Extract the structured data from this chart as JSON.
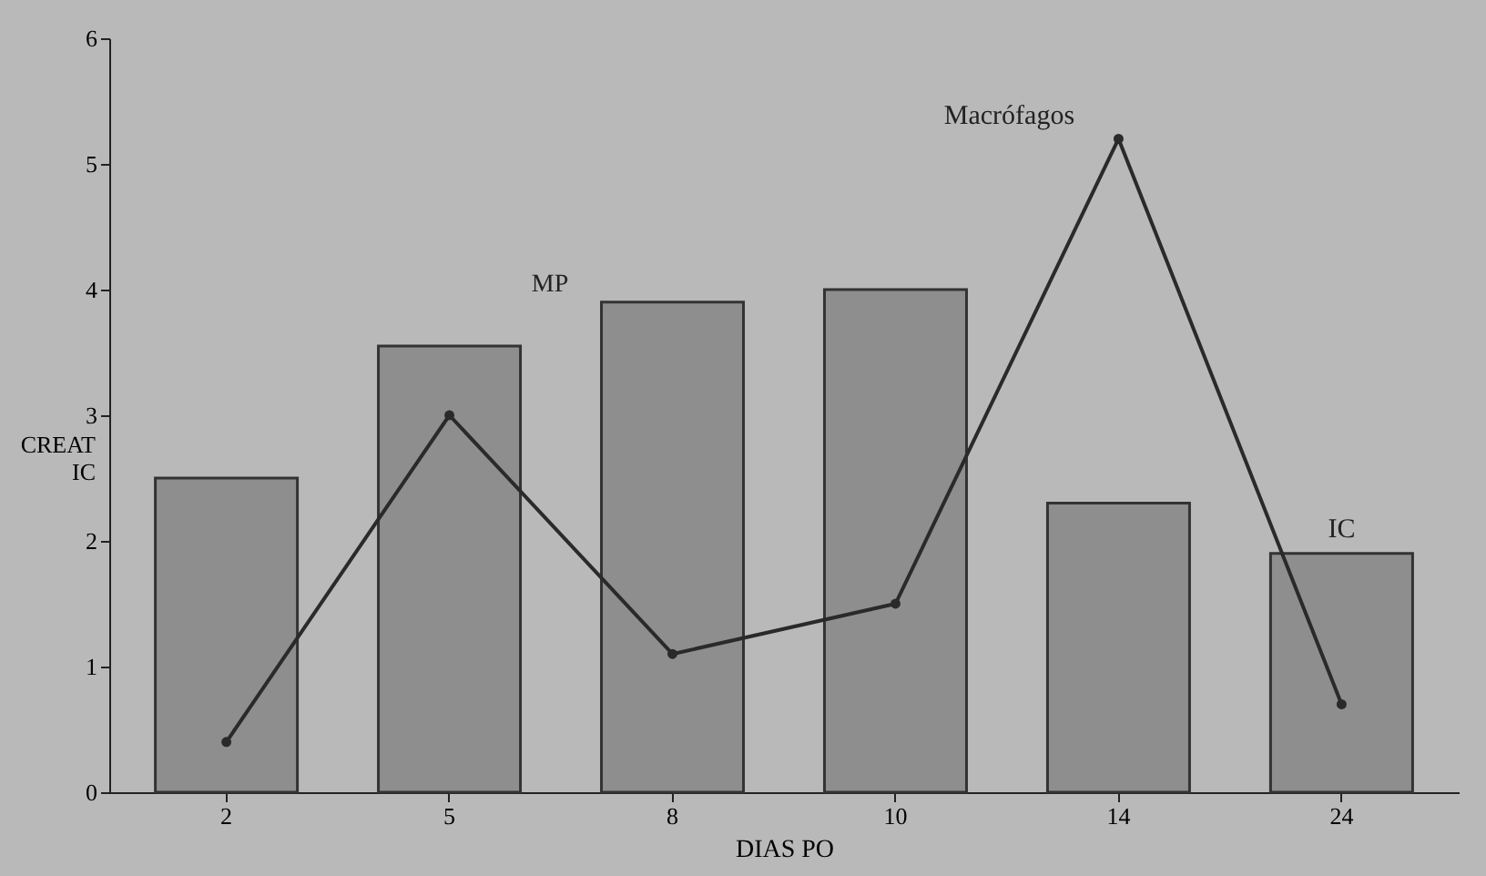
{
  "chart_data": {
    "type": "bar",
    "xlabel": "DIAS PO",
    "ylabel": "CREAT\nIC",
    "categories": [
      "2",
      "5",
      "8",
      "10",
      "14",
      "24"
    ],
    "series": [
      {
        "name": "IC",
        "color": "#8e8e8e",
        "values": [
          2.5,
          3.55,
          3.9,
          4.0,
          2.3,
          1.9
        ]
      },
      {
        "name": "Macrófagos",
        "type": "line",
        "color": "#2a2a2a",
        "values": [
          0.4,
          3.0,
          1.1,
          1.5,
          5.2,
          0.7
        ],
        "marker": "circle"
      }
    ],
    "annotations": [
      "MP"
    ],
    "ylim": [
      0,
      6
    ],
    "yticks": [
      0,
      1,
      2,
      3,
      4,
      5,
      6
    ],
    "grid": false,
    "legend": false
  }
}
